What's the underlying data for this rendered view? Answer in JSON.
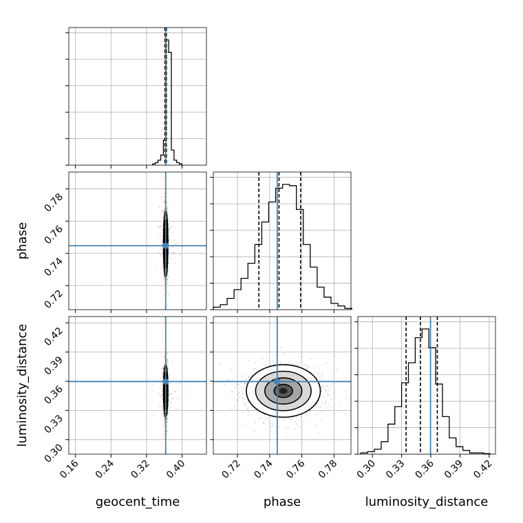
{
  "chart_data": {
    "type": "corner",
    "parameters": [
      "geocent_time",
      "phase",
      "luminosity_distance"
    ],
    "truth_color": "#4682b4",
    "hist_color": "#000000",
    "grid": true,
    "axes": {
      "geocent_time": {
        "range": [
          0.145,
          0.455
        ],
        "ticks": [
          0.16,
          0.24,
          0.32,
          0.4
        ],
        "ticklabels": [
          "0.16",
          "0.24",
          "0.32",
          "0.40"
        ]
      },
      "phase": {
        "range": [
          0.705,
          0.7905
        ],
        "ticks": [
          0.72,
          0.74,
          0.76,
          0.78
        ],
        "ticklabels": [
          "0.72",
          "0.74",
          "0.76",
          "0.78"
        ]
      },
      "luminosity_distance": {
        "range": [
          0.285,
          0.4265
        ],
        "ticks": [
          0.3,
          0.33,
          0.36,
          0.39,
          0.42
        ],
        "ticklabels": [
          "0.30",
          "0.33",
          "0.36",
          "0.39",
          "0.42"
        ]
      }
    },
    "truths": {
      "geocent_time": 0.3632,
      "phase": 0.7447,
      "luminosity_distance": 0.3597
    },
    "quantiles": {
      "geocent_time": [
        0.3614,
        0.3631,
        0.3648
      ],
      "phase": [
        0.7333,
        0.7458,
        0.7592
      ],
      "luminosity_distance": [
        0.3346,
        0.3493,
        0.3667
      ]
    },
    "histograms": {
      "geocent_time": {
        "edges": [
          0.334,
          0.34,
          0.346,
          0.352,
          0.358,
          0.364,
          0.37,
          0.376,
          0.382,
          0.388,
          0.394,
          0.4
        ],
        "counts": [
          0.01,
          0.02,
          0.04,
          0.08,
          0.2,
          1.0,
          0.9,
          0.12,
          0.04,
          0.02,
          0.01
        ]
      },
      "phase": {
        "edges": [
          0.705,
          0.7093,
          0.7136,
          0.7179,
          0.7222,
          0.7265,
          0.7308,
          0.7351,
          0.7394,
          0.7437,
          0.748,
          0.7523,
          0.7566,
          0.7609,
          0.7652,
          0.7695,
          0.7738,
          0.7781,
          0.7824,
          0.7867,
          0.791
        ],
        "counts": [
          0.02,
          0.04,
          0.09,
          0.16,
          0.25,
          0.37,
          0.52,
          0.7,
          0.86,
          0.97,
          1.0,
          0.99,
          0.8,
          0.52,
          0.34,
          0.18,
          0.1,
          0.05,
          0.03,
          0.01
        ]
      },
      "luminosity_distance": {
        "edges": [
          0.288,
          0.295,
          0.302,
          0.309,
          0.316,
          0.323,
          0.33,
          0.337,
          0.344,
          0.351,
          0.358,
          0.365,
          0.372,
          0.379,
          0.386,
          0.393,
          0.4,
          0.407,
          0.414,
          0.421
        ],
        "counts": [
          0.01,
          0.02,
          0.04,
          0.1,
          0.24,
          0.38,
          0.57,
          0.73,
          0.93,
          1.0,
          0.85,
          0.56,
          0.3,
          0.13,
          0.06,
          0.03,
          0.01,
          0.01,
          0.005
        ]
      }
    },
    "joint": {
      "phase_vs_geocent_time": {
        "x": "geocent_time",
        "y": "phase",
        "x_center": 0.3632,
        "y_center": 0.7458,
        "x_sd": 0.0025,
        "y_sd": 0.0105
      },
      "luminosity_distance_vs_geocent_time": {
        "x": "geocent_time",
        "y": "luminosity_distance",
        "x_center": 0.3632,
        "y_center": 0.35,
        "x_sd": 0.0025,
        "y_sd": 0.0135
      },
      "luminosity_distance_vs_phase": {
        "x": "phase",
        "y": "luminosity_distance",
        "x_center": 0.7485,
        "y_center": 0.35,
        "x_sd": 0.0115,
        "y_sd": 0.0135
      }
    },
    "xlabels": [
      "geocent_time",
      "phase",
      "luminosity_distance"
    ],
    "ylabels": [
      "",
      "phase",
      "luminosity_distance"
    ]
  }
}
